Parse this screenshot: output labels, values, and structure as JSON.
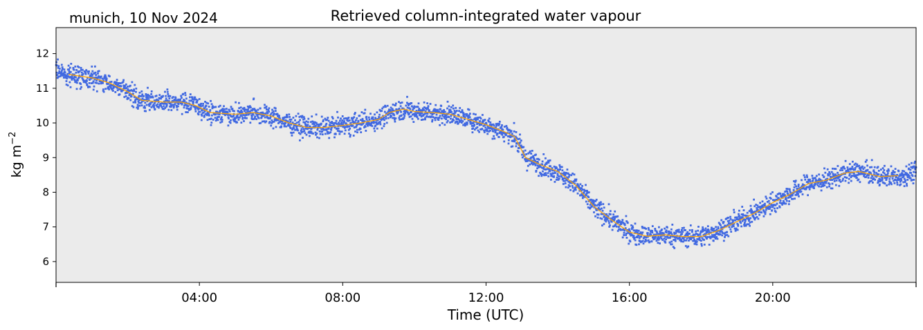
{
  "chart_data": {
    "type": "scatter",
    "title": "Retrieved column-integrated water vapour",
    "subtitle": "munich, 10 Nov 2024",
    "xlabel": "Time (UTC)",
    "ylabel": "kg m",
    "ylabel_superscript": "−2",
    "xlim": [
      0,
      24
    ],
    "ylim": [
      5.4,
      12.75
    ],
    "x_ticks": [
      {
        "value": 4,
        "label": "04:00"
      },
      {
        "value": 8,
        "label": "08:00"
      },
      {
        "value": 12,
        "label": "12:00"
      },
      {
        "value": 16,
        "label": "16:00"
      },
      {
        "value": 20,
        "label": "20:00"
      }
    ],
    "y_ticks": [
      6,
      7,
      8,
      9,
      10,
      11,
      12
    ],
    "grid": false,
    "background_color": "#ebebeb",
    "series": [
      {
        "kind": "scatter",
        "color": "#4169e1",
        "spread": 0.14,
        "x": [
          0,
          0.3,
          1,
          1.5,
          2,
          2.4,
          3,
          3.5,
          3.9,
          4.3,
          5,
          5.5,
          6,
          6.5,
          7,
          7.5,
          8,
          8.5,
          9,
          9.3,
          9.7,
          10,
          10.5,
          11,
          11.5,
          12,
          12.5,
          12.8,
          13.1,
          13.5,
          14,
          14.5,
          15,
          15.5,
          16,
          16.5,
          17,
          17.5,
          18,
          18.5,
          19,
          19.5,
          20,
          20.5,
          21,
          21.5,
          22,
          22.4,
          23,
          23.5,
          24
        ],
        "y": [
          11.55,
          11.4,
          11.3,
          11.15,
          10.9,
          10.65,
          10.6,
          10.6,
          10.5,
          10.3,
          10.25,
          10.3,
          10.2,
          10.0,
          9.87,
          9.87,
          9.93,
          10.0,
          10.1,
          10.3,
          10.4,
          10.33,
          10.3,
          10.25,
          10.1,
          9.95,
          9.75,
          9.6,
          9.0,
          8.8,
          8.6,
          8.2,
          7.6,
          7.2,
          6.85,
          6.73,
          6.77,
          6.72,
          6.72,
          6.9,
          7.15,
          7.4,
          7.7,
          7.95,
          8.25,
          8.35,
          8.55,
          8.6,
          8.45,
          8.45,
          8.6
        ]
      },
      {
        "kind": "line",
        "color": "#ffa500",
        "x": [
          0.35,
          1,
          1.5,
          2,
          2.4,
          3,
          3.5,
          3.9,
          4.3,
          5,
          5.5,
          6,
          6.5,
          7,
          7.5,
          8,
          8.5,
          9,
          9.3,
          9.7,
          10,
          10.5,
          11,
          11.5,
          12,
          12.5,
          12.8,
          13.1,
          13.5,
          14,
          14.5,
          15,
          15.5,
          16,
          16.5,
          17,
          17.5,
          18,
          18.5,
          19,
          19.5,
          20,
          20.5,
          21,
          21.5,
          22,
          22.4,
          23,
          23.5
        ],
        "y": [
          11.4,
          11.3,
          11.15,
          10.9,
          10.65,
          10.6,
          10.6,
          10.5,
          10.3,
          10.25,
          10.3,
          10.2,
          10.0,
          9.87,
          9.87,
          9.93,
          10.0,
          10.1,
          10.3,
          10.4,
          10.33,
          10.3,
          10.25,
          10.1,
          9.95,
          9.75,
          9.6,
          9.0,
          8.8,
          8.6,
          8.2,
          7.6,
          7.2,
          6.85,
          6.73,
          6.77,
          6.72,
          6.72,
          6.9,
          7.15,
          7.4,
          7.7,
          7.95,
          8.25,
          8.35,
          8.55,
          8.6,
          8.45,
          8.48
        ]
      }
    ]
  }
}
